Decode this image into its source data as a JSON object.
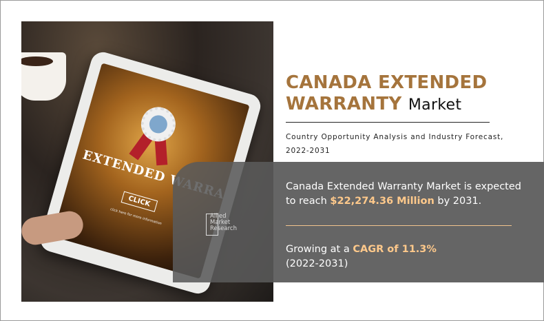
{
  "title": {
    "highlight_line1": "CANADA EXTENDED",
    "highlight_line2": "WARRANTY",
    "suffix": "Market"
  },
  "subtitle": "Country Opportunity Analysis and Industry Forecast, 2022-2031",
  "stat_market": {
    "prefix": "Canada Extended Warranty Market is expected to reach",
    "value": "$22,274.36 Million",
    "suffix": "by 2031."
  },
  "stat_cagr": {
    "prefix": "Growing at a",
    "value": "CAGR of 11.3%",
    "period": "(2022-2031)"
  },
  "logo": {
    "line1": "Allied",
    "line2": "Market",
    "line3": "Research"
  },
  "photo": {
    "screen_title": "EXTENDED WARRANTY",
    "screen_button": "CLICK",
    "screen_note": "click here for more information"
  },
  "colors": {
    "title": "#a5743c",
    "highlight": "#ffc98b",
    "panel": "#656565"
  }
}
